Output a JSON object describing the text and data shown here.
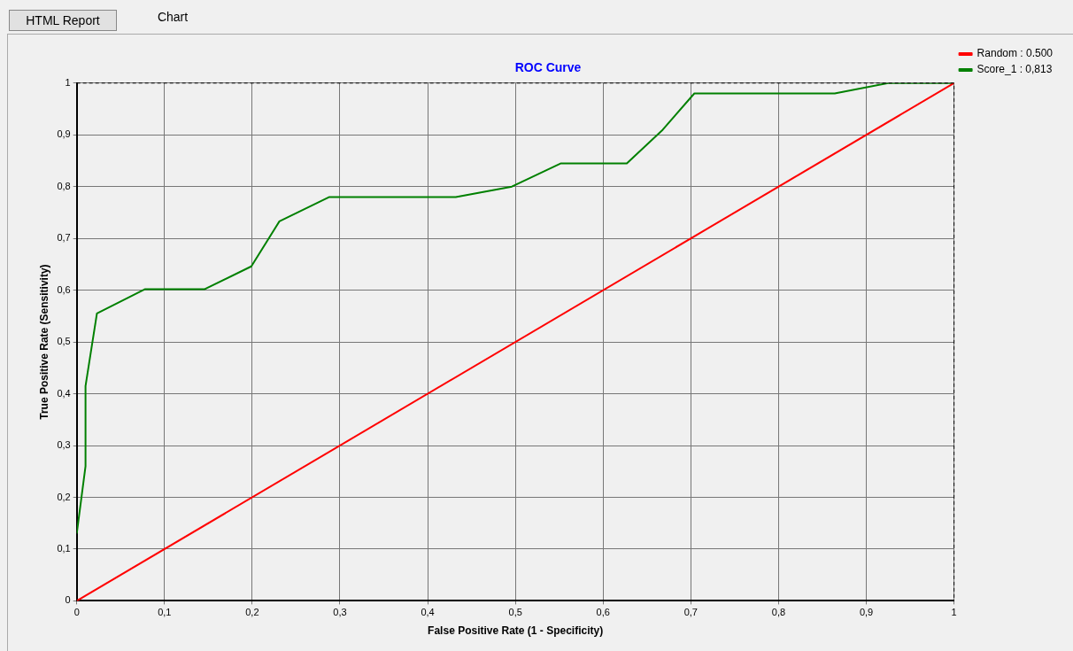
{
  "chart_data": {
    "type": "line",
    "title": "ROC Curve",
    "xlabel": "False Positive Rate (1 - Specificity)",
    "ylabel": "True Positive Rate (Sensitivity)",
    "annotations": [
      "HTML Report",
      "Chart"
    ],
    "series": [
      {
        "name": "Random : 0.500",
        "color": "#ff0000",
        "x": [
          0,
          1
        ],
        "values": [
          0,
          1
        ]
      },
      {
        "name": "Score_1 : 0,813",
        "color": "#008000",
        "x": [
          0,
          0.01,
          0.01,
          0.023,
          0.078,
          0.146,
          0.199,
          0.231,
          0.288,
          0.432,
          0.496,
          0.552,
          0.627,
          0.668,
          0.704,
          0.864,
          0.925,
          1
        ],
        "values": [
          0.13,
          0.26,
          0.415,
          0.555,
          0.602,
          0.602,
          0.646,
          0.733,
          0.78,
          0.78,
          0.8,
          0.845,
          0.845,
          0.91,
          0.98,
          0.98,
          1,
          1
        ]
      }
    ],
    "xlim": [
      0,
      1
    ],
    "ylim": [
      0,
      1
    ],
    "xticks": [
      0,
      {
        "value": 0.1,
        "label": "0,1"
      },
      {
        "value": 0.2,
        "label": "0,2"
      },
      {
        "value": 0.3,
        "label": "0,3"
      },
      {
        "value": 0.4,
        "label": "0,4"
      },
      {
        "value": 0.5,
        "label": "0,5"
      },
      {
        "value": 0.6,
        "label": "0,6"
      },
      {
        "value": 0.7,
        "label": "0,7"
      },
      {
        "value": 0.8,
        "label": "0,8"
      },
      {
        "value": 0.9,
        "label": "0,9"
      },
      1
    ],
    "yticks": [
      0,
      {
        "value": 0.1,
        "label": "0,1"
      },
      {
        "value": 0.2,
        "label": "0,2"
      },
      {
        "value": 0.3,
        "label": "0,3"
      },
      {
        "value": 0.4,
        "label": "0,4"
      },
      {
        "value": 0.5,
        "label": "0,5"
      },
      {
        "value": 0.6,
        "label": "0,6"
      },
      {
        "value": 0.7,
        "label": "0,7"
      },
      {
        "value": 0.8,
        "label": "0,8"
      },
      {
        "value": 0.9,
        "label": "0,9"
      },
      1
    ],
    "grid": true,
    "legend": "top right",
    "marker": "none",
    "line_style": "solid"
  }
}
